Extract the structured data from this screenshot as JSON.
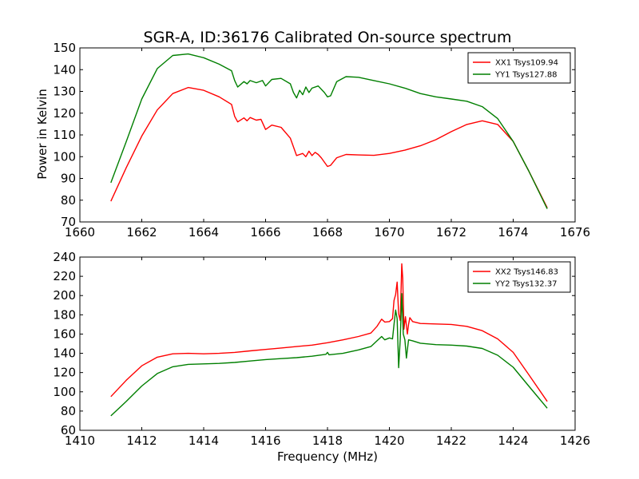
{
  "figure": {
    "title": "SGR-A, ID:36176 Calibrated On-source spectrum",
    "ylabel": "Power in Kelvin",
    "xlabel": "Frequency (MHz)"
  },
  "chart_data": [
    {
      "type": "line",
      "title": "SGR-A, ID:36176 Calibrated On-source spectrum",
      "xlabel": "",
      "ylabel": "Power in Kelvin",
      "xlim": [
        1660,
        1676
      ],
      "ylim": [
        70,
        150
      ],
      "xticks": [
        1660,
        1662,
        1664,
        1666,
        1668,
        1670,
        1672,
        1674,
        1676
      ],
      "yticks": [
        70,
        80,
        90,
        100,
        110,
        120,
        130,
        140,
        150
      ],
      "legend_position": "top-right",
      "series": [
        {
          "name": "XX1 Tsys109.94",
          "color": "#ff0000",
          "points": [
            [
              1661.0,
              79.5
            ],
            [
              1661.5,
              95.0
            ],
            [
              1662.0,
              109.5
            ],
            [
              1662.5,
              121.5
            ],
            [
              1663.0,
              129.0
            ],
            [
              1663.5,
              131.8
            ],
            [
              1664.0,
              130.5
            ],
            [
              1664.5,
              127.5
            ],
            [
              1664.9,
              124.0
            ],
            [
              1665.0,
              118.5
            ],
            [
              1665.1,
              116.0
            ],
            [
              1665.3,
              117.8
            ],
            [
              1665.4,
              116.5
            ],
            [
              1665.5,
              118.0
            ],
            [
              1665.7,
              116.8
            ],
            [
              1665.85,
              117.2
            ],
            [
              1666.0,
              112.5
            ],
            [
              1666.2,
              114.5
            ],
            [
              1666.5,
              113.5
            ],
            [
              1666.8,
              108.5
            ],
            [
              1666.9,
              104.5
            ],
            [
              1667.0,
              100.5
            ],
            [
              1667.2,
              101.5
            ],
            [
              1667.3,
              100.0
            ],
            [
              1667.4,
              102.5
            ],
            [
              1667.5,
              100.5
            ],
            [
              1667.6,
              102.0
            ],
            [
              1667.7,
              101.0
            ],
            [
              1667.8,
              99.5
            ],
            [
              1668.0,
              95.5
            ],
            [
              1668.1,
              96.0
            ],
            [
              1668.3,
              99.5
            ],
            [
              1668.6,
              101.0
            ],
            [
              1669.0,
              100.8
            ],
            [
              1669.5,
              100.6
            ],
            [
              1670.0,
              101.5
            ],
            [
              1670.5,
              103.0
            ],
            [
              1671.0,
              105.0
            ],
            [
              1671.5,
              107.8
            ],
            [
              1672.0,
              111.5
            ],
            [
              1672.5,
              114.8
            ],
            [
              1673.0,
              116.5
            ],
            [
              1673.5,
              114.8
            ],
            [
              1674.0,
              107.0
            ],
            [
              1674.5,
              93.5
            ],
            [
              1675.1,
              76.5
            ]
          ]
        },
        {
          "name": "YY1 Tsys127.88",
          "color": "#007f00",
          "points": [
            [
              1661.0,
              88.0
            ],
            [
              1661.5,
              107.0
            ],
            [
              1662.0,
              126.5
            ],
            [
              1662.5,
              140.5
            ],
            [
              1663.0,
              146.5
            ],
            [
              1663.5,
              147.2
            ],
            [
              1664.0,
              145.5
            ],
            [
              1664.5,
              142.5
            ],
            [
              1664.9,
              139.5
            ],
            [
              1665.0,
              135.0
            ],
            [
              1665.1,
              132.0
            ],
            [
              1665.3,
              134.5
            ],
            [
              1665.4,
              133.5
            ],
            [
              1665.5,
              135.0
            ],
            [
              1665.7,
              134.0
            ],
            [
              1665.9,
              135.0
            ],
            [
              1666.0,
              132.5
            ],
            [
              1666.2,
              135.5
            ],
            [
              1666.5,
              136.0
            ],
            [
              1666.8,
              133.5
            ],
            [
              1666.9,
              129.5
            ],
            [
              1667.0,
              127.0
            ],
            [
              1667.1,
              130.5
            ],
            [
              1667.2,
              128.5
            ],
            [
              1667.3,
              132.0
            ],
            [
              1667.4,
              129.5
            ],
            [
              1667.5,
              131.5
            ],
            [
              1667.7,
              132.5
            ],
            [
              1667.9,
              129.5
            ],
            [
              1668.0,
              127.5
            ],
            [
              1668.1,
              128.0
            ],
            [
              1668.3,
              134.5
            ],
            [
              1668.6,
              136.8
            ],
            [
              1669.0,
              136.5
            ],
            [
              1669.5,
              135.0
            ],
            [
              1670.0,
              133.5
            ],
            [
              1670.5,
              131.5
            ],
            [
              1671.0,
              129.0
            ],
            [
              1671.5,
              127.5
            ],
            [
              1672.0,
              126.5
            ],
            [
              1672.5,
              125.5
            ],
            [
              1673.0,
              123.0
            ],
            [
              1673.5,
              117.5
            ],
            [
              1674.0,
              107.0
            ],
            [
              1674.5,
              93.5
            ],
            [
              1675.1,
              76.0
            ]
          ]
        }
      ]
    },
    {
      "type": "line",
      "title": "",
      "xlabel": "Frequency (MHz)",
      "ylabel": "",
      "xlim": [
        1410,
        1426
      ],
      "ylim": [
        60,
        240
      ],
      "xticks": [
        1410,
        1412,
        1414,
        1416,
        1418,
        1420,
        1422,
        1424,
        1426
      ],
      "yticks": [
        60,
        80,
        100,
        120,
        140,
        160,
        180,
        200,
        220,
        240
      ],
      "legend_position": "top-right",
      "series": [
        {
          "name": "XX2 Tsys146.83",
          "color": "#ff0000",
          "points": [
            [
              1411.0,
              95.0
            ],
            [
              1411.5,
              112.0
            ],
            [
              1412.0,
              127.0
            ],
            [
              1412.5,
              136.0
            ],
            [
              1413.0,
              139.5
            ],
            [
              1413.5,
              140.0
            ],
            [
              1414.0,
              139.5
            ],
            [
              1414.5,
              140.0
            ],
            [
              1415.0,
              141.0
            ],
            [
              1415.5,
              142.5
            ],
            [
              1416.0,
              144.0
            ],
            [
              1416.5,
              145.5
            ],
            [
              1417.0,
              147.0
            ],
            [
              1417.5,
              148.5
            ],
            [
              1418.0,
              151.0
            ],
            [
              1418.5,
              154.0
            ],
            [
              1419.0,
              157.5
            ],
            [
              1419.4,
              161.0
            ],
            [
              1419.6,
              168.0
            ],
            [
              1419.75,
              175.5
            ],
            [
              1419.85,
              172.5
            ],
            [
              1420.0,
              173.0
            ],
            [
              1420.1,
              176.0
            ],
            [
              1420.15,
              195.0
            ],
            [
              1420.2,
              201.0
            ],
            [
              1420.25,
              214.0
            ],
            [
              1420.3,
              181.0
            ],
            [
              1420.35,
              174.0
            ],
            [
              1420.4,
              233.0
            ],
            [
              1420.43,
              218.0
            ],
            [
              1420.47,
              165.0
            ],
            [
              1420.52,
              178.0
            ],
            [
              1420.58,
              160.0
            ],
            [
              1420.62,
              170.0
            ],
            [
              1420.66,
              177.0
            ],
            [
              1420.75,
              173.0
            ],
            [
              1421.0,
              171.0
            ],
            [
              1421.5,
              170.5
            ],
            [
              1422.0,
              170.0
            ],
            [
              1422.5,
              168.0
            ],
            [
              1423.0,
              163.5
            ],
            [
              1423.5,
              155.0
            ],
            [
              1424.0,
              141.0
            ],
            [
              1424.5,
              118.0
            ],
            [
              1425.1,
              90.0
            ]
          ]
        },
        {
          "name": "YY2 Tsys132.37",
          "color": "#007f00",
          "points": [
            [
              1411.0,
              75.0
            ],
            [
              1411.5,
              90.0
            ],
            [
              1412.0,
              106.0
            ],
            [
              1412.5,
              119.0
            ],
            [
              1413.0,
              126.0
            ],
            [
              1413.5,
              128.5
            ],
            [
              1414.0,
              129.0
            ],
            [
              1414.5,
              129.5
            ],
            [
              1415.0,
              130.5
            ],
            [
              1415.5,
              132.0
            ],
            [
              1416.0,
              133.5
            ],
            [
              1416.5,
              134.5
            ],
            [
              1417.0,
              135.5
            ],
            [
              1417.5,
              137.0
            ],
            [
              1417.95,
              139.0
            ],
            [
              1418.0,
              141.0
            ],
            [
              1418.05,
              138.5
            ],
            [
              1418.5,
              140.0
            ],
            [
              1419.0,
              143.5
            ],
            [
              1419.4,
              147.0
            ],
            [
              1419.6,
              153.0
            ],
            [
              1419.75,
              157.5
            ],
            [
              1419.85,
              154.0
            ],
            [
              1420.0,
              156.0
            ],
            [
              1420.1,
              155.0
            ],
            [
              1420.15,
              170.0
            ],
            [
              1420.2,
              185.0
            ],
            [
              1420.25,
              176.0
            ],
            [
              1420.3,
              125.0
            ],
            [
              1420.35,
              155.0
            ],
            [
              1420.4,
              202.0
            ],
            [
              1420.45,
              160.0
            ],
            [
              1420.5,
              154.0
            ],
            [
              1420.55,
              135.0
            ],
            [
              1420.62,
              154.0
            ],
            [
              1420.75,
              153.0
            ],
            [
              1421.0,
              150.5
            ],
            [
              1421.5,
              149.0
            ],
            [
              1422.0,
              148.5
            ],
            [
              1422.5,
              147.5
            ],
            [
              1423.0,
              145.0
            ],
            [
              1423.5,
              138.0
            ],
            [
              1424.0,
              125.5
            ],
            [
              1424.5,
              106.0
            ],
            [
              1425.1,
              83.0
            ]
          ]
        }
      ]
    }
  ]
}
